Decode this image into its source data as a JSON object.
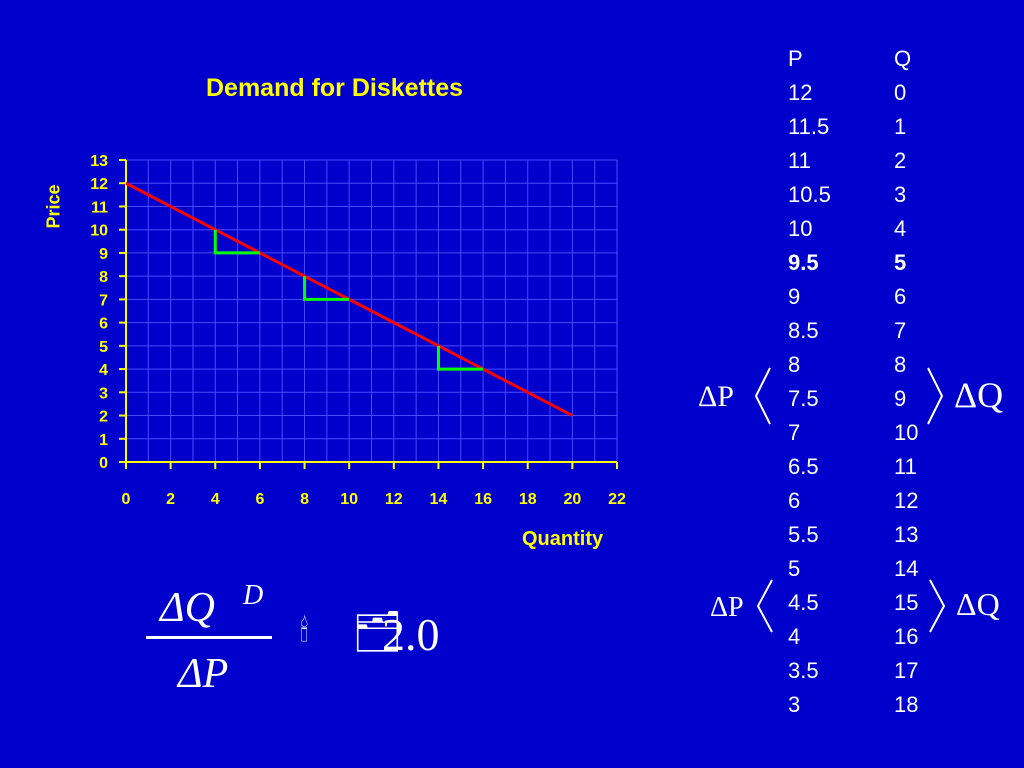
{
  "chart_data": {
    "type": "line",
    "title": "Demand for Diskettes",
    "xlabel": "Quantity",
    "ylabel": "Price",
    "xlim": [
      0,
      22
    ],
    "ylim": [
      0,
      13
    ],
    "x_ticks": [
      "0",
      "2",
      "4",
      "6",
      "8",
      "10",
      "12",
      "14",
      "16",
      "18",
      "20",
      "22"
    ],
    "y_ticks": [
      "0",
      "1",
      "2",
      "3",
      "4",
      "5",
      "6",
      "7",
      "8",
      "9",
      "10",
      "11",
      "12",
      "13"
    ],
    "grid": true,
    "line_color": "#ff0000",
    "series": [
      {
        "x": [
          0,
          1,
          2,
          3,
          4,
          5,
          6,
          7,
          8,
          9,
          10,
          11,
          12,
          13,
          14,
          15,
          16,
          17,
          18,
          19,
          20
        ],
        "y": [
          12,
          11.5,
          11,
          10.5,
          10,
          9.5,
          9,
          8.5,
          8,
          7.5,
          7,
          6.5,
          6,
          5.5,
          5,
          4.5,
          4,
          3.5,
          3,
          2.5,
          2
        ]
      }
    ],
    "steps": [
      {
        "from": [
          4,
          10
        ],
        "corner": [
          4,
          9
        ],
        "to": [
          6,
          9
        ]
      },
      {
        "from": [
          8,
          8
        ],
        "corner": [
          8,
          7
        ],
        "to": [
          10,
          7
        ]
      },
      {
        "from": [
          14,
          5
        ],
        "corner": [
          14,
          4
        ],
        "to": [
          16,
          4
        ]
      }
    ],
    "step_color": "#00ff00"
  },
  "table": {
    "header": {
      "p": "P",
      "q": "Q"
    },
    "rows": [
      {
        "p": "12",
        "q": "0"
      },
      {
        "p": "11.5",
        "q": "1"
      },
      {
        "p": "11",
        "q": "2"
      },
      {
        "p": "10.5",
        "q": "3"
      },
      {
        "p": "10",
        "q": "4"
      },
      {
        "p": "9.5",
        "q": "5",
        "bold": true
      },
      {
        "p": "9",
        "q": "6"
      },
      {
        "p": "8.5",
        "q": "7"
      },
      {
        "p": "8",
        "q": "8"
      },
      {
        "p": "7.5",
        "q": "9"
      },
      {
        "p": "7",
        "q": "10"
      },
      {
        "p": "6.5",
        "q": "11"
      },
      {
        "p": "6",
        "q": "12"
      },
      {
        "p": "5.5",
        "q": "13"
      },
      {
        "p": "5",
        "q": "14"
      },
      {
        "p": "4.5",
        "q": "15"
      },
      {
        "p": "4",
        "q": "16"
      },
      {
        "p": "3.5",
        "q": "17"
      },
      {
        "p": "3",
        "q": "18"
      }
    ]
  },
  "annotations": {
    "delta_p_1": "ΔP",
    "delta_q_1": "ΔQ",
    "delta_p_2": "ΔP",
    "delta_q_2": "ΔQ"
  },
  "formula": {
    "numerator": "ΔQ",
    "superscript": "D",
    "denominator": "ΔP",
    "glyph_1": "🕯",
    "glyph_2": "🗂",
    "value": "2.0"
  },
  "colors": {
    "background": "#0000cc",
    "title": "#ffff00",
    "text": "#ffffff"
  }
}
